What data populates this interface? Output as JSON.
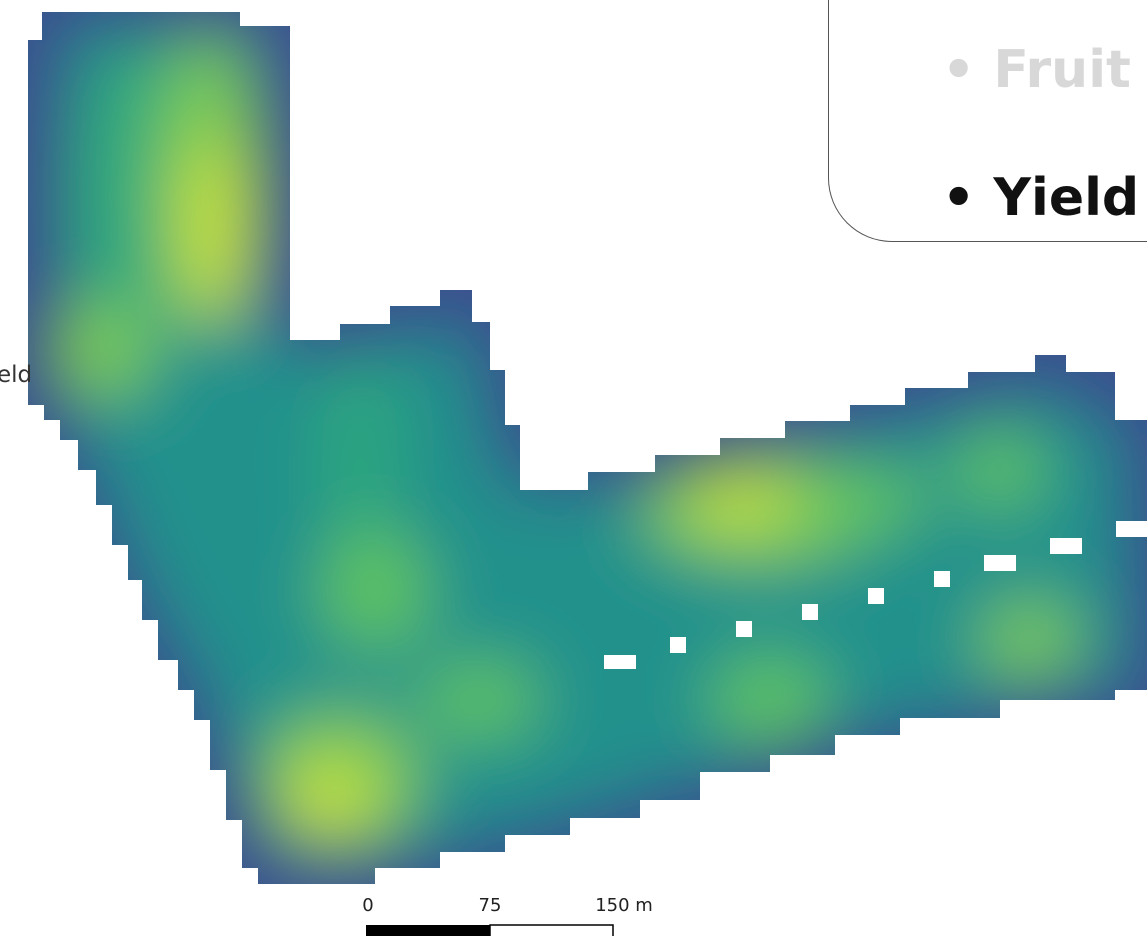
{
  "slide": {
    "bullets": [
      {
        "text": "• Fruit",
        "state": "dimmed",
        "color": "#d8d8d8"
      },
      {
        "text": "• Yield",
        "state": "active",
        "color": "#111111"
      }
    ],
    "cut_off_label": "eld"
  },
  "map": {
    "colormap": [
      "#3b4f8f",
      "#2a7d8e",
      "#21918c",
      "#2fa77e",
      "#5ec45e",
      "#c8e03a"
    ],
    "scale_bar": {
      "ticks": [
        "0",
        "75",
        "150 m"
      ]
    }
  }
}
